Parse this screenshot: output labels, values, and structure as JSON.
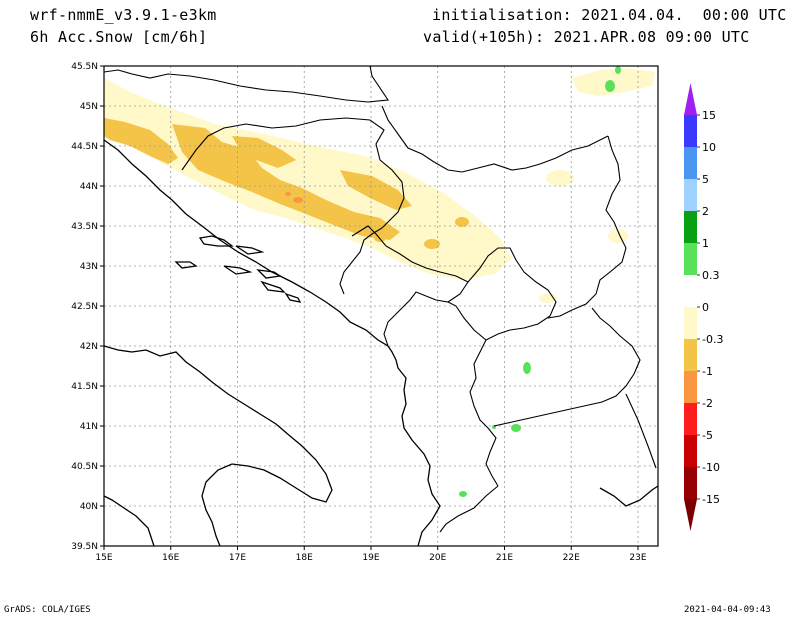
{
  "header": {
    "model": "wrf-nmmE_v3.9.1-e3km",
    "variable": "6h Acc.Snow [cm/6h]",
    "init": "initialisation: 2021.04.04.  00:00 UTC",
    "valid": "valid(+105h): 2021.APR.08 09:00 UTC"
  },
  "footer": {
    "credit": "GrADS: COLA/IGES",
    "timestamp": "2021-04-04-09:43"
  },
  "chart_data": {
    "type": "heatmap",
    "title": "6h Acc.Snow [cm/6h]",
    "xlim": [
      15,
      23.3
    ],
    "ylim": [
      39.5,
      45.5
    ],
    "x_ticks": [
      "15E",
      "16E",
      "17E",
      "18E",
      "19E",
      "20E",
      "21E",
      "22E",
      "23E"
    ],
    "y_ticks": [
      "39.5N",
      "40N",
      "40.5N",
      "41N",
      "41.5N",
      "42N",
      "42.5N",
      "43N",
      "43.5N",
      "44N",
      "44.5N",
      "45N",
      "45.5N"
    ],
    "grid": true,
    "legend": "right",
    "colorbar": {
      "labels": [
        "15",
        "10",
        "5",
        "2",
        "1",
        "0.3",
        "0",
        "-0.3",
        "-1",
        "-2",
        "-5",
        "-10",
        "-15"
      ],
      "colors": [
        "#3a3aff",
        "#4a96f0",
        "#9fd3ff",
        "#0aa014",
        "#5ae15a",
        "#ffffff",
        "#fff8c8",
        "#f4c448",
        "#fa9640",
        "#ff1e1e",
        "#c80000",
        "#960000"
      ],
      "top_arrow_color": "#a020f0",
      "bottom_arrow_color": "#7a0000"
    },
    "features": [
      {
        "label": "-0.3",
        "color": "#fff8c8",
        "lon": [
          15.5,
          20.2
        ],
        "lat": [
          43.0,
          45.0
        ]
      },
      {
        "label": "-1",
        "color": "#f4c448",
        "lon": [
          15.1,
          19.9
        ],
        "lat": [
          43.3,
          44.6
        ]
      },
      {
        "label": "-2",
        "color": "#fa9640",
        "lon": [
          17.9,
          18.3
        ],
        "lat": [
          43.7,
          43.9
        ]
      },
      {
        "label": "0.3",
        "color": "#5ae15a",
        "lon": [
          21.3,
          22.8
        ],
        "lat": [
          40.1,
          45.3
        ]
      }
    ]
  }
}
